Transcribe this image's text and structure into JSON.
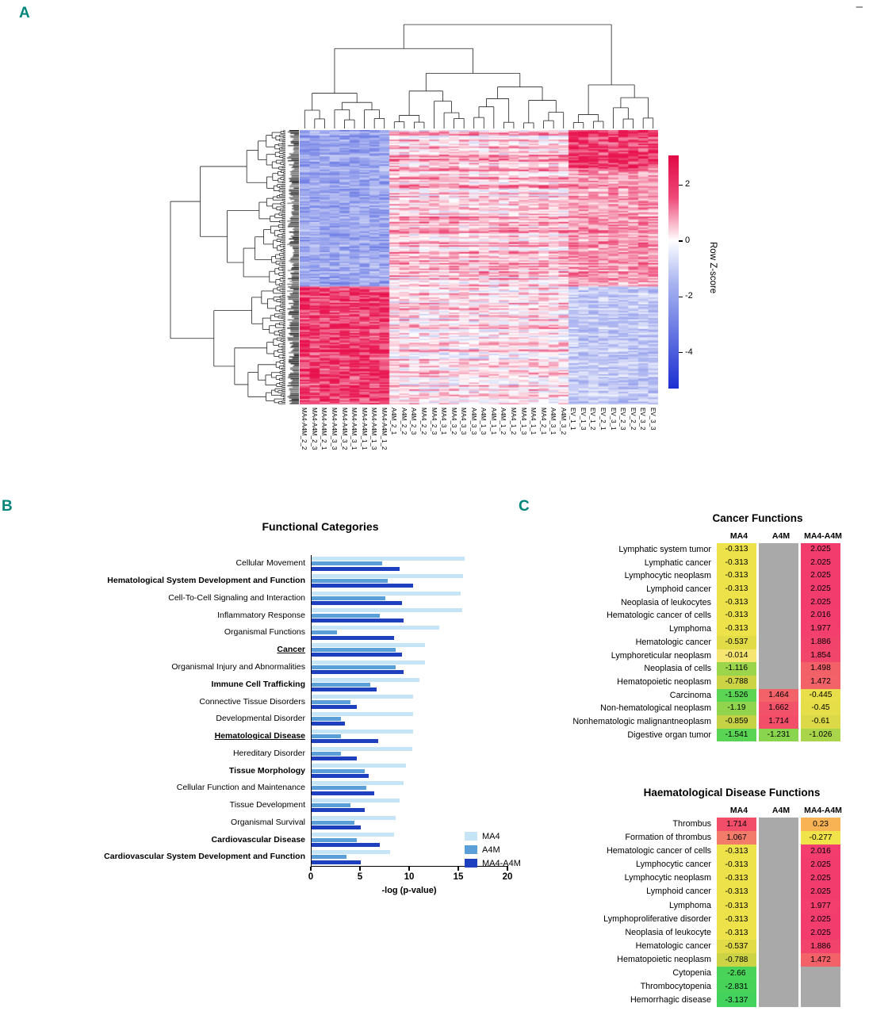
{
  "meta": {
    "panel_a": "A",
    "panel_b": "B",
    "panel_c": "C",
    "corner_mark": "–"
  },
  "chart_data": [
    {
      "type": "heatmap",
      "colorbar_title": "Row Z-score",
      "colorbar_ticks": [
        2,
        0,
        -2,
        -4
      ],
      "colorbar_range": [
        3.05,
        -5.3
      ],
      "n_rows": 200,
      "col_labels": [
        "MA4-A4M_2_2",
        "MA4-A4M_2_3",
        "MA4-A4M_2_1",
        "MA4-A4M_3_3",
        "MA4-A4M_3_2",
        "MA4-A4M_3_1",
        "MA4-A4M_1_1",
        "MA4-A4M_1_3",
        "MA4-A4M_1_2",
        "A4M_2_1",
        "A4M_2_2",
        "A4M_2_3",
        "MA4_2_2",
        "MA4_2_3",
        "MA4_3_1",
        "MA4_3_2",
        "MA4_3_3",
        "A4M_3_3",
        "A4M_1_3",
        "A4M_1_1",
        "A4M_1_2",
        "MA4_1_2",
        "MA4_1_3",
        "MA4_1_1",
        "MA4_2_1",
        "A4M_3_1",
        "A4M_3_2",
        "EV_1_1",
        "EV_1_3",
        "EV_1_2",
        "EV_2_1",
        "EV_3_1",
        "EV_2_3",
        "EV_2_2",
        "EV_3_2",
        "EV_3_3"
      ],
      "pos_color": "#e8124e",
      "neg_color": "#1c34d6"
    },
    {
      "type": "bar",
      "title": "Functional Categories",
      "xlabel": "-log (p-value)",
      "xlim": [
        0,
        20
      ],
      "xticks": [
        0,
        5,
        10,
        15,
        20
      ],
      "legend_position": "inside-right-bottom",
      "categories": [
        {
          "label": "Cellular Movement",
          "bold": false,
          "underline": false
        },
        {
          "label": "Hematological System Development and Function",
          "bold": true,
          "underline": false
        },
        {
          "label": "Cell-To-Cell Signaling and Interaction",
          "bold": false,
          "underline": false
        },
        {
          "label": "Inflammatory Response",
          "bold": false,
          "underline": false
        },
        {
          "label": "Organismal Functions",
          "bold": false,
          "underline": false
        },
        {
          "label": "Cancer",
          "bold": true,
          "underline": true
        },
        {
          "label": "Organismal Injury and Abnormalities",
          "bold": false,
          "underline": false
        },
        {
          "label": "Immune Cell Trafficking",
          "bold": true,
          "underline": false
        },
        {
          "label": "Connective Tissue Disorders",
          "bold": false,
          "underline": false
        },
        {
          "label": "Developmental Disorder",
          "bold": false,
          "underline": false
        },
        {
          "label": "Hematological Disease",
          "bold": true,
          "underline": true
        },
        {
          "label": "Hereditary Disorder",
          "bold": false,
          "underline": false
        },
        {
          "label": "Tissue Morphology",
          "bold": true,
          "underline": false
        },
        {
          "label": "Cellular Function and Maintenance",
          "bold": false,
          "underline": false
        },
        {
          "label": "Tissue Development",
          "bold": false,
          "underline": false
        },
        {
          "label": "Organismal Survival",
          "bold": false,
          "underline": false
        },
        {
          "label": "Cardiovascular Disease",
          "bold": true,
          "underline": false
        },
        {
          "label": "Cardiovascular System Development and Function",
          "bold": true,
          "underline": false
        }
      ],
      "series": [
        {
          "name": "MA4",
          "color": "#c5e4f6",
          "values": [
            15.6,
            15.5,
            15.2,
            15.4,
            13.0,
            11.6,
            11.6,
            11.0,
            10.4,
            10.4,
            10.4,
            10.3,
            9.6,
            9.4,
            9.0,
            8.6,
            8.4,
            8.0
          ]
        },
        {
          "name": "A4M",
          "color": "#5b9fd8",
          "values": [
            7.2,
            7.8,
            7.5,
            7.0,
            2.6,
            8.6,
            8.6,
            6.0,
            4.0,
            3.0,
            3.0,
            3.0,
            5.4,
            5.6,
            4.0,
            4.4,
            4.6,
            3.6
          ]
        },
        {
          "name": "MA4-A4M",
          "color": "#1e3fbe",
          "values": [
            9.0,
            10.4,
            9.2,
            9.4,
            8.4,
            9.2,
            9.4,
            6.6,
            4.6,
            3.4,
            6.8,
            4.6,
            5.8,
            6.4,
            5.4,
            5.0,
            7.0,
            5.0
          ]
        }
      ]
    },
    {
      "type": "table",
      "title": "Cancer Functions",
      "columns": [
        "MA4",
        "A4M",
        "MA4-A4M"
      ],
      "rows": [
        {
          "label": "Lymphatic system tumor",
          "values": [
            -0.313,
            null,
            2.025
          ]
        },
        {
          "label": "Lymphatic  cancer",
          "values": [
            -0.313,
            null,
            2.025
          ]
        },
        {
          "label": "Lymphocytic neoplasm",
          "values": [
            -0.313,
            null,
            2.025
          ]
        },
        {
          "label": "Lymphoid  cancer",
          "values": [
            -0.313,
            null,
            2.025
          ]
        },
        {
          "label": "Neoplasia of leukocytes",
          "values": [
            -0.313,
            null,
            2.025
          ]
        },
        {
          "label": "Hematologic cancer of cells",
          "values": [
            -0.313,
            null,
            2.016
          ]
        },
        {
          "label": "Lymphoma",
          "values": [
            -0.313,
            null,
            1.977
          ]
        },
        {
          "label": "Hematologic cancer",
          "values": [
            -0.537,
            null,
            1.886
          ]
        },
        {
          "label": "Lymphoreticular neoplasm",
          "values": [
            -0.014,
            null,
            1.854
          ]
        },
        {
          "label": "Neoplasia of cells",
          "values": [
            -1.116,
            null,
            1.498
          ]
        },
        {
          "label": "Hematopoietic neoplasm",
          "values": [
            -0.788,
            null,
            1.472
          ]
        },
        {
          "label": "Carcinoma",
          "values": [
            -1.526,
            1.464,
            -0.445
          ]
        },
        {
          "label": "Non-hematological neoplasm",
          "values": [
            -1.19,
            1.662,
            -0.45
          ]
        },
        {
          "label": "Nonhematologic malignantneoplasm",
          "values": [
            -0.859,
            1.714,
            -0.61
          ]
        },
        {
          "label": "Digestive organ tumor",
          "values": [
            -1.541,
            -1.231,
            -1.026
          ]
        }
      ]
    },
    {
      "type": "table",
      "title": "Haematological Disease Functions",
      "columns": [
        "MA4",
        "A4M",
        "MA4-A4M"
      ],
      "rows": [
        {
          "label": "Thrombus",
          "values": [
            1.714,
            null,
            0.23
          ]
        },
        {
          "label": "Formation of thrombus",
          "values": [
            1.067,
            null,
            -0.277
          ]
        },
        {
          "label": "Hematologic cancer of cells",
          "values": [
            -0.313,
            null,
            2.016
          ]
        },
        {
          "label": "Lymphocytic cancer",
          "values": [
            -0.313,
            null,
            2.025
          ]
        },
        {
          "label": "Lymphocytic neoplasm",
          "values": [
            -0.313,
            null,
            2.025
          ]
        },
        {
          "label": "Lymphoid cancer",
          "values": [
            -0.313,
            null,
            2.025
          ]
        },
        {
          "label": "Lymphoma",
          "values": [
            -0.313,
            null,
            1.977
          ]
        },
        {
          "label": "Lymphoproliferative disorder",
          "values": [
            -0.313,
            null,
            2.025
          ]
        },
        {
          "label": "Neoplasia of leukocyte",
          "values": [
            -0.313,
            null,
            2.025
          ]
        },
        {
          "label": "Hematologic cancer",
          "values": [
            -0.537,
            null,
            1.886
          ]
        },
        {
          "label": "Hematopoietic neoplasm",
          "values": [
            -0.788,
            null,
            1.472
          ]
        },
        {
          "label": "Cytopenia",
          "values": [
            -2.66,
            null,
            null
          ]
        },
        {
          "label": "Thrombocytopenia",
          "values": [
            -2.831,
            null,
            null
          ]
        },
        {
          "label": "Hemorrhagic disease",
          "values": [
            -3.137,
            null,
            null
          ]
        }
      ]
    }
  ]
}
